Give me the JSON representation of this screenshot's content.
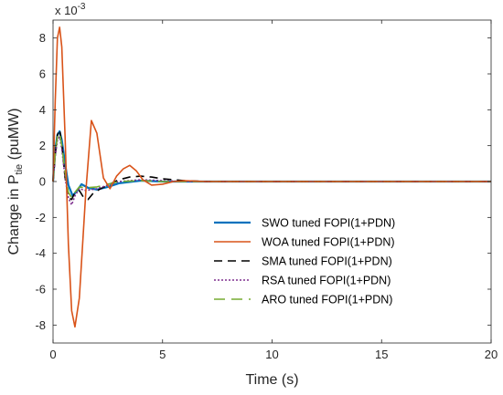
{
  "chart_data": {
    "type": "line",
    "xlabel": "Time (s)",
    "ylabel_main": "Change in P",
    "ylabel_sub": "tie",
    "ylabel_tail": " (puMW)",
    "y_multiplier": "x 10",
    "y_multiplier_exp": "-3",
    "xlim": [
      0,
      20
    ],
    "ylim": [
      -9,
      9
    ],
    "x_ticks": [
      0,
      5,
      10,
      15,
      20
    ],
    "x_tick_labels": [
      "0",
      "5",
      "10",
      "15",
      "20"
    ],
    "y_ticks": [
      -8,
      -6,
      -4,
      -2,
      0,
      2,
      4,
      6,
      8
    ],
    "y_tick_labels": [
      "-8",
      "-6",
      "-4",
      "-2",
      "0",
      "2",
      "4",
      "6",
      "8"
    ],
    "grid": false,
    "legend_position": "lower-right",
    "series": [
      {
        "name": "SWO tuned FOPI(1+PDN)",
        "color": "#0072BD",
        "dash": "solid",
        "x": [
          0,
          0.1,
          0.2,
          0.3,
          0.4,
          0.55,
          0.7,
          0.9,
          1.1,
          1.3,
          1.6,
          2.0,
          2.5,
          3.0,
          4.0,
          5.0,
          6.0,
          8.0,
          20.0
        ],
        "y": [
          0,
          1.8,
          2.6,
          2.8,
          2.3,
          1.0,
          -0.2,
          -0.8,
          -0.5,
          -0.15,
          -0.35,
          -0.45,
          -0.3,
          -0.1,
          0.05,
          0.0,
          0.0,
          0.0,
          0.0
        ]
      },
      {
        "name": "WOA tuned FOPI(1+PDN)",
        "color": "#D95319",
        "dash": "solid",
        "x": [
          0,
          0.1,
          0.2,
          0.3,
          0.4,
          0.55,
          0.7,
          0.85,
          1.0,
          1.2,
          1.5,
          1.75,
          2.0,
          2.3,
          2.6,
          2.9,
          3.2,
          3.5,
          3.8,
          4.1,
          4.5,
          5.0,
          5.5,
          6.0,
          7.0,
          8.0,
          20.0
        ],
        "y": [
          0,
          4.5,
          8.0,
          8.6,
          7.5,
          2.5,
          -3.5,
          -7.2,
          -8.1,
          -6.5,
          -0.5,
          3.4,
          2.7,
          0.2,
          -0.4,
          0.3,
          0.7,
          0.9,
          0.6,
          0.1,
          -0.2,
          -0.15,
          0.0,
          0.05,
          0.0,
          0.0,
          0.0
        ]
      },
      {
        "name": "SMA tuned FOPI(1+PDN)",
        "color": "#000000",
        "dash": "9,6",
        "x": [
          0,
          0.1,
          0.2,
          0.3,
          0.4,
          0.55,
          0.7,
          0.85,
          1.0,
          1.2,
          1.4,
          1.6,
          1.8,
          2.1,
          2.5,
          3.0,
          3.5,
          4.0,
          4.5,
          5.0,
          6.0,
          7.0,
          8.0,
          20.0
        ],
        "y": [
          0,
          1.5,
          2.6,
          2.9,
          2.1,
          0.2,
          -0.9,
          -1.0,
          -0.6,
          -0.5,
          -0.9,
          -1.0,
          -0.7,
          -0.45,
          -0.2,
          0.1,
          0.25,
          0.3,
          0.25,
          0.15,
          0.05,
          0.0,
          0.0,
          0.0
        ]
      },
      {
        "name": "RSA tuned FOPI(1+PDN)",
        "color": "#7E2F8E",
        "dash": "2,2",
        "x": [
          0,
          0.1,
          0.2,
          0.3,
          0.4,
          0.55,
          0.7,
          0.85,
          1.0,
          1.2,
          1.5,
          2.0,
          2.5,
          3.0,
          4.0,
          5.0,
          6.0,
          20.0
        ],
        "y": [
          0,
          1.4,
          2.3,
          2.5,
          1.8,
          0.2,
          -0.9,
          -1.3,
          -0.8,
          -0.4,
          -0.5,
          -0.4,
          -0.2,
          0.0,
          0.1,
          0.05,
          0.0,
          0.0
        ]
      },
      {
        "name": "ARO tuned FOPI(1+PDN)",
        "color": "#77AC30",
        "dash": "12,7",
        "x": [
          0,
          0.1,
          0.2,
          0.3,
          0.4,
          0.55,
          0.7,
          0.85,
          1.0,
          1.2,
          1.5,
          2.0,
          2.5,
          3.0,
          4.0,
          5.0,
          6.0,
          20.0
        ],
        "y": [
          0,
          1.6,
          2.5,
          2.7,
          2.0,
          0.5,
          -0.6,
          -0.9,
          -0.6,
          -0.3,
          -0.35,
          -0.3,
          -0.15,
          0.0,
          0.05,
          0.0,
          0.0,
          0.0
        ]
      }
    ]
  }
}
